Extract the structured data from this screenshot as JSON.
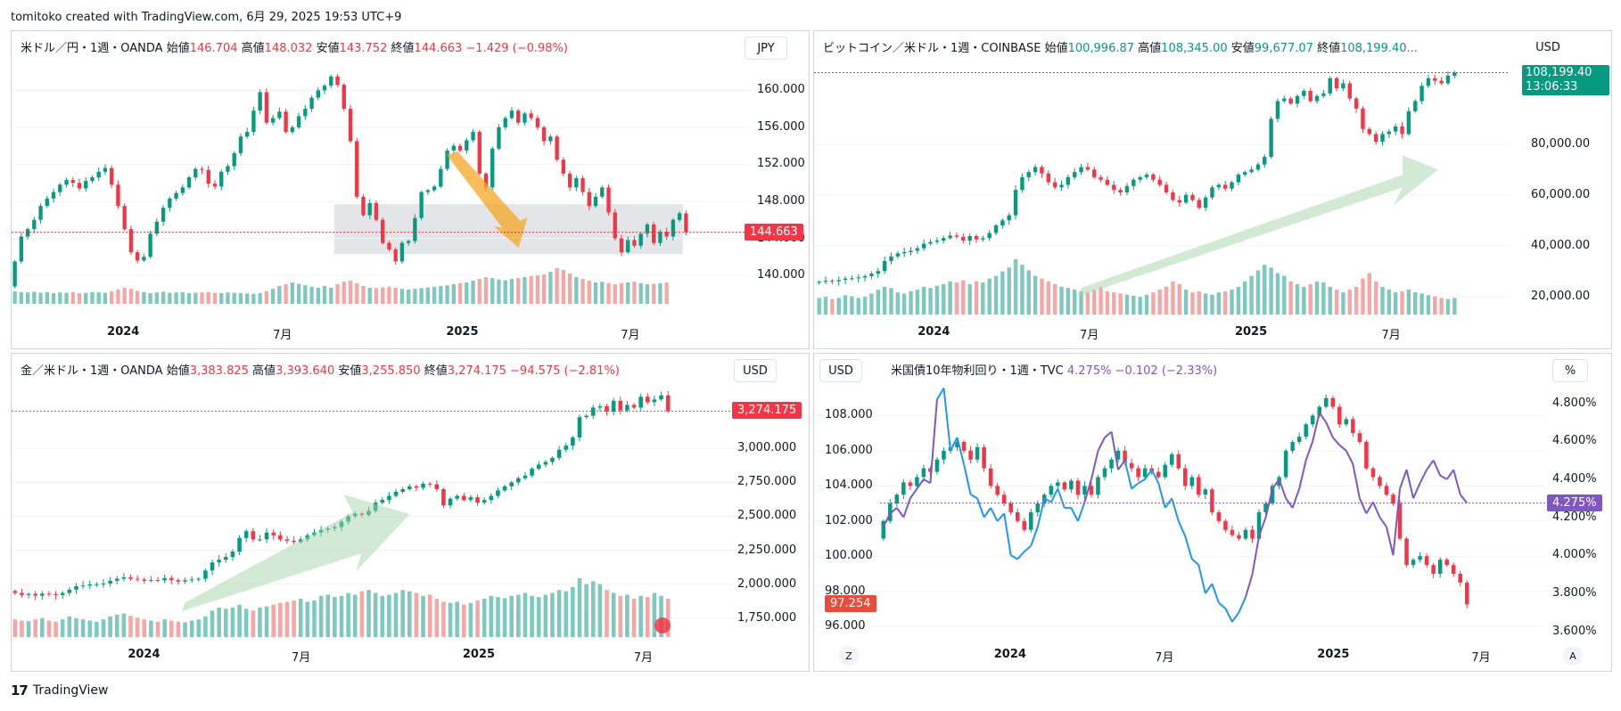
{
  "header": {
    "text": "tomitoko created with TradingView.com, 6月 29, 2025 19:53 UTC+9"
  },
  "footer": {
    "logo": "17",
    "brand": "TradingView"
  },
  "chart_data": [
    {
      "id": "usdjpy",
      "type": "candlestick",
      "legend": {
        "name": "米ドル／円・1週・OANDA",
        "open_label": "始値",
        "open": "146.704",
        "high_label": "高値",
        "high": "148.032",
        "low_label": "安値",
        "low": "143.752",
        "close_label": "終値",
        "close": "144.663",
        "change": "−1.429 (−0.98%)"
      },
      "unit": "JPY",
      "y_ticks": [
        "160.000",
        "156.000",
        "152.000",
        "148.000",
        "144.000",
        "140.000"
      ],
      "y_ticks_values": [
        160,
        156,
        152,
        148,
        144,
        140
      ],
      "ylim": [
        137.5,
        163.5
      ],
      "last_price_tag": "144.663",
      "last_price": 144.663,
      "x_labels": [
        {
          "text": "2024",
          "bold": true,
          "t": 0.146
        },
        {
          "text": "7月",
          "bold": false,
          "t": 0.37
        },
        {
          "text": "2025",
          "bold": true,
          "t": 0.604
        },
        {
          "text": "7月",
          "bold": false,
          "t": 0.84
        }
      ],
      "closes": [
        141.5,
        144.2,
        145.0,
        146.0,
        147.5,
        148.3,
        149.0,
        149.8,
        150.3,
        150.0,
        149.4,
        150.2,
        150.6,
        151.2,
        151.6,
        149.8,
        147.5,
        145.0,
        142.5,
        141.6,
        142.0,
        144.5,
        145.8,
        147.3,
        148.3,
        148.9,
        149.5,
        150.6,
        151.5,
        151.4,
        149.9,
        149.6,
        151.2,
        151.8,
        153.2,
        155.0,
        155.5,
        157.8,
        159.8,
        156.5,
        157.0,
        157.7,
        155.5,
        156.0,
        157.2,
        158.0,
        159.2,
        160.0,
        160.5,
        161.5,
        160.6,
        158.0,
        154.5,
        148.5,
        146.5,
        147.8,
        146.0,
        143.5,
        142.8,
        141.5,
        143.5,
        143.7,
        146.2,
        149.0,
        149.2,
        149.6,
        151.5,
        153.5,
        154.0,
        153.5,
        154.6,
        155.5,
        151.0,
        149.5,
        153.7,
        156.0,
        157.0,
        157.8,
        156.5,
        157.5,
        157.0,
        156.0,
        154.5,
        155.0,
        152.5,
        151.0,
        149.5,
        150.5,
        149.0,
        147.5,
        148.5,
        149.5,
        146.8,
        144.0,
        142.5,
        143.8,
        143.2,
        144.5,
        145.5,
        143.5,
        144.7,
        144.2,
        146.0,
        146.7,
        144.66
      ],
      "volumes": [
        0.35,
        0.33,
        0.32,
        0.34,
        0.31,
        0.33,
        0.3,
        0.32,
        0.31,
        0.33,
        0.3,
        0.31,
        0.33,
        0.32,
        0.31,
        0.35,
        0.4,
        0.45,
        0.42,
        0.36,
        0.33,
        0.3,
        0.32,
        0.34,
        0.31,
        0.32,
        0.33,
        0.3,
        0.31,
        0.32,
        0.33,
        0.31,
        0.3,
        0.32,
        0.31,
        0.3,
        0.29,
        0.28,
        0.3,
        0.35,
        0.42,
        0.5,
        0.55,
        0.6,
        0.56,
        0.52,
        0.48,
        0.45,
        0.5,
        0.45,
        0.55,
        0.62,
        0.65,
        0.58,
        0.5,
        0.45,
        0.44,
        0.46,
        0.48,
        0.45,
        0.42,
        0.4,
        0.42,
        0.44,
        0.46,
        0.48,
        0.5,
        0.52,
        0.55,
        0.58,
        0.6,
        0.65,
        0.7,
        0.75,
        0.72,
        0.68,
        0.66,
        0.7,
        0.72,
        0.75,
        0.78,
        0.8,
        0.82,
        0.9,
        1.0,
        0.95,
        0.85,
        0.75,
        0.7,
        0.65,
        0.6,
        0.62,
        0.58,
        0.55,
        0.58,
        0.6,
        0.62,
        0.58,
        0.55,
        0.56,
        0.58,
        0.6
      ],
      "overlay_rect": {
        "from_candle": 50,
        "to_candle": 104,
        "low": 142.3,
        "high": 147.7
      },
      "overlay_arrow": {
        "color": "#f5a623",
        "from_candle": 68,
        "from_price": 153.0,
        "to_candle": 78,
        "to_price": 143.0
      }
    },
    {
      "id": "btcusd",
      "type": "candlestick",
      "legend": {
        "name": "ビットコイン／米ドル・1週・COINBASE",
        "open_label": "始値",
        "open": "100,996.87",
        "high_label": "高値",
        "high": "108,345.00",
        "low_label": "安値",
        "low": "99,677.07",
        "close_label": "終値",
        "close": "108,199.40..."
      },
      "unit": "USD",
      "y_ticks": [
        "80,000.00",
        "60,000.00",
        "40,000.00",
        "20,000.00"
      ],
      "y_ticks_values": [
        80000,
        60000,
        40000,
        20000
      ],
      "ylim": [
        15000,
        114000
      ],
      "last_price_tag": "108,199.40",
      "countdown": "13:06:33",
      "last_price": 108199.4,
      "x_labels": [
        {
          "text": "2024",
          "bold": true,
          "t": 0.167
        },
        {
          "text": "7月",
          "bold": false,
          "t": 0.4
        },
        {
          "text": "2025",
          "bold": true,
          "t": 0.623
        },
        {
          "text": "7月",
          "bold": false,
          "t": 0.834
        }
      ],
      "closes": [
        25800,
        26200,
        26000,
        26500,
        27000,
        27200,
        27500,
        28000,
        29000,
        30000,
        34000,
        35800,
        37000,
        37500,
        38000,
        39000,
        40800,
        41500,
        42000,
        43000,
        44000,
        43500,
        42000,
        43800,
        42500,
        43000,
        45000,
        48000,
        50000,
        52000,
        62000,
        67000,
        69000,
        71000,
        68500,
        65000,
        63000,
        64000,
        67000,
        69000,
        71000,
        70000,
        67000,
        66000,
        64000,
        62000,
        61000,
        63500,
        66000,
        67000,
        68000,
        66000,
        64000,
        61000,
        58000,
        57000,
        60000,
        58000,
        55000,
        59000,
        63000,
        64000,
        62500,
        65000,
        68000,
        69000,
        70000,
        72000,
        75000,
        90000,
        97000,
        98000,
        96000,
        99000,
        101000,
        97000,
        99000,
        100000,
        106000,
        102000,
        104000,
        98000,
        94000,
        86000,
        84000,
        81000,
        84000,
        85000,
        87000,
        84000,
        93000,
        97000,
        103000,
        106000,
        105000,
        104000,
        107000,
        108199
      ],
      "volumes": [
        0.3,
        0.32,
        0.28,
        0.3,
        0.35,
        0.33,
        0.3,
        0.32,
        0.38,
        0.45,
        0.5,
        0.48,
        0.4,
        0.38,
        0.42,
        0.45,
        0.5,
        0.48,
        0.52,
        0.55,
        0.6,
        0.58,
        0.62,
        0.55,
        0.6,
        0.58,
        0.65,
        0.7,
        0.78,
        0.85,
        1.0,
        0.9,
        0.8,
        0.7,
        0.65,
        0.6,
        0.55,
        0.5,
        0.48,
        0.45,
        0.42,
        0.4,
        0.45,
        0.5,
        0.42,
        0.4,
        0.38,
        0.36,
        0.34,
        0.32,
        0.36,
        0.4,
        0.45,
        0.5,
        0.6,
        0.55,
        0.45,
        0.4,
        0.42,
        0.38,
        0.36,
        0.4,
        0.42,
        0.45,
        0.5,
        0.6,
        0.7,
        0.8,
        0.9,
        0.85,
        0.75,
        0.7,
        0.6,
        0.55,
        0.5,
        0.55,
        0.6,
        0.58,
        0.5,
        0.45,
        0.4,
        0.45,
        0.5,
        0.65,
        0.75,
        0.6,
        0.5,
        0.45,
        0.4,
        0.42,
        0.45,
        0.4,
        0.38,
        0.35,
        0.33,
        0.3,
        0.28,
        0.3
      ],
      "overlay_arrow": {
        "color": "#a5d6a7",
        "from_candle": 40,
        "from_price": 34000,
        "to_candle": 95,
        "to_price": 70000
      }
    },
    {
      "id": "xauusd",
      "type": "candlestick",
      "legend": {
        "name": "金／米ドル・1週・OANDA",
        "open_label": "始値",
        "open": "3,383.825",
        "high_label": "高値",
        "high": "3,393.640",
        "low_label": "安値",
        "low": "3,255.850",
        "close_label": "終値",
        "close": "3,274.175",
        "change": "−94.575 (−2.81%)"
      },
      "unit": "USD",
      "y_ticks": [
        "3,000.000",
        "2,750.000",
        "2,500.000",
        "2,250.000",
        "2,000.000",
        "1,750.000"
      ],
      "y_ticks_values": [
        3000,
        2750,
        2500,
        2250,
        2000,
        1750
      ],
      "ylim": [
        1650,
        3500
      ],
      "last_price_tag": "3,274.175",
      "last_price": 3274.175,
      "x_labels": [
        {
          "text": "2024",
          "bold": true,
          "t": 0.176
        },
        {
          "text": "7月",
          "bold": false,
          "t": 0.4
        },
        {
          "text": "2025",
          "bold": true,
          "t": 0.634
        },
        {
          "text": "7月",
          "bold": false,
          "t": 0.868
        }
      ],
      "closes": [
        1935,
        1920,
        1928,
        1915,
        1930,
        1925,
        1920,
        1935,
        1960,
        1985,
        1990,
        1998,
        2000,
        2005,
        2025,
        2040,
        2050,
        2040,
        2035,
        2025,
        2030,
        2028,
        2045,
        2030,
        2020,
        2030,
        2035,
        2040,
        2100,
        2160,
        2180,
        2200,
        2240,
        2340,
        2390,
        2330,
        2330,
        2380,
        2360,
        2330,
        2320,
        2310,
        2330,
        2360,
        2380,
        2400,
        2410,
        2420,
        2460,
        2500,
        2520,
        2510,
        2540,
        2600,
        2620,
        2650,
        2680,
        2700,
        2720,
        2710,
        2740,
        2735,
        2700,
        2580,
        2630,
        2650,
        2620,
        2640,
        2600,
        2620,
        2650,
        2690,
        2720,
        2750,
        2780,
        2800,
        2850,
        2880,
        2900,
        2930,
        2990,
        3020,
        3080,
        3230,
        3240,
        3300,
        3310,
        3270,
        3350,
        3280,
        3320,
        3300,
        3380,
        3340,
        3360,
        3390,
        3274
      ],
      "volumes": [
        0.3,
        0.28,
        0.27,
        0.3,
        0.32,
        0.28,
        0.26,
        0.3,
        0.35,
        0.32,
        0.3,
        0.28,
        0.26,
        0.3,
        0.35,
        0.38,
        0.4,
        0.36,
        0.33,
        0.3,
        0.28,
        0.26,
        0.3,
        0.28,
        0.26,
        0.25,
        0.28,
        0.3,
        0.35,
        0.45,
        0.5,
        0.48,
        0.5,
        0.55,
        0.48,
        0.45,
        0.5,
        0.52,
        0.55,
        0.58,
        0.6,
        0.62,
        0.65,
        0.6,
        0.62,
        0.7,
        0.72,
        0.68,
        0.7,
        0.75,
        0.72,
        0.78,
        0.8,
        0.75,
        0.7,
        0.72,
        0.75,
        0.8,
        0.78,
        0.75,
        0.7,
        0.72,
        0.65,
        0.6,
        0.58,
        0.6,
        0.55,
        0.58,
        0.62,
        0.65,
        0.7,
        0.68,
        0.66,
        0.7,
        0.72,
        0.75,
        0.7,
        0.68,
        0.72,
        0.75,
        0.8,
        0.78,
        0.85,
        1.0,
        0.9,
        0.95,
        0.9,
        0.8,
        0.75,
        0.7,
        0.72,
        0.65,
        0.7,
        0.68,
        0.75,
        0.7,
        0.65
      ],
      "overlay_arrow": {
        "color": "#a5d6a7",
        "from_candle": 25,
        "from_price": 1800,
        "to_candle": 58,
        "to_price": 2620
      }
    },
    {
      "id": "us10y",
      "type": "candlestick_with_line",
      "legend_left_unit": "USD",
      "legend": {
        "name": "米国債10年物利回り・1週・TVC",
        "value": "4.275%",
        "change": "−0.102 (−2.33%)"
      },
      "unit": "%",
      "left_y_ticks": [
        "108.000",
        "106.000",
        "104.000",
        "102.000",
        "100.000",
        "98.000",
        "96.000"
      ],
      "left_y_ticks_values": [
        108,
        106,
        104,
        102,
        100,
        98,
        96
      ],
      "left_ylim": [
        95.4,
        110.0
      ],
      "right_y_ticks": [
        "4.800%",
        "4.600%",
        "4.400%",
        "4.200%",
        "4.000%",
        "3.800%",
        "3.600%"
      ],
      "right_y_ticks_values": [
        4.8,
        4.6,
        4.4,
        4.2,
        4.0,
        3.8,
        3.6
      ],
      "right_ylim": [
        3.57,
        4.92
      ],
      "left_tag": "97.254",
      "right_tag": "4.275%",
      "last_yield": 4.275,
      "buttons": {
        "left": "Z",
        "right": "A"
      },
      "x_labels": [
        {
          "text": "2024",
          "bold": true,
          "t": 0.19
        },
        {
          "text": "7月",
          "bold": false,
          "t": 0.432
        },
        {
          "text": "2025",
          "bold": true,
          "t": 0.676
        },
        {
          "text": "7月",
          "bold": false,
          "t": 0.908
        }
      ],
      "closes": [
        102.0,
        103.0,
        103.5,
        104.2,
        104.0,
        104.5,
        105.0,
        104.8,
        105.5,
        106.0,
        106.2,
        106.5,
        106.0,
        105.5,
        106.2,
        105.0,
        104.0,
        103.5,
        103.0,
        102.5,
        102.0,
        101.5,
        102.5,
        103.0,
        103.5,
        104.0,
        104.2,
        103.8,
        104.3,
        103.5,
        104.0,
        103.5,
        104.5,
        105.0,
        105.5,
        106.0,
        105.3,
        105.0,
        104.5,
        105.0,
        104.8,
        104.5,
        105.2,
        105.8,
        105.0,
        104.0,
        104.5,
        103.5,
        103.8,
        102.5,
        102.0,
        101.5,
        101.2,
        101.0,
        101.5,
        101.0,
        102.5,
        103.0,
        104.0,
        104.5,
        106.0,
        106.5,
        106.8,
        107.5,
        108.0,
        108.5,
        109.0,
        108.5,
        107.5,
        107.8,
        107.0,
        106.5,
        105.0,
        104.5,
        104.0,
        103.5,
        103.0,
        101.0,
        99.5,
        99.8,
        100.0,
        99.5,
        99.0,
        99.8,
        99.5,
        99.0,
        98.5,
        97.254
      ],
      "yield_line": [
        4.15,
        4.22,
        4.25,
        4.2,
        4.3,
        4.35,
        4.4,
        4.38,
        4.82,
        4.88,
        4.55,
        4.62,
        4.48,
        4.32,
        4.3,
        4.2,
        4.25,
        4.18,
        4.22,
        4.0,
        3.98,
        4.02,
        4.05,
        4.15,
        4.3,
        4.28,
        4.35,
        4.25,
        4.25,
        4.18,
        4.28,
        4.4,
        4.55,
        4.62,
        4.65,
        4.45,
        4.5,
        4.35,
        4.38,
        4.4,
        4.45,
        4.38,
        4.25,
        4.3,
        4.18,
        4.1,
        3.98,
        3.95,
        3.8,
        3.85,
        3.75,
        3.72,
        3.65,
        3.7,
        3.78,
        3.9,
        4.1,
        4.2,
        4.35,
        4.4,
        4.3,
        4.25,
        4.35,
        4.5,
        4.6,
        4.75,
        4.7,
        4.62,
        4.58,
        4.55,
        4.48,
        4.3,
        4.22,
        4.28,
        4.2,
        4.15,
        4.0,
        4.35,
        4.45,
        4.3,
        4.38,
        4.45,
        4.5,
        4.42,
        4.4,
        4.45,
        4.32,
        4.275
      ],
      "line_colors": [
        "#7e57c2",
        "#2196f3"
      ],
      "last_yield_line_color": "#7e57c2"
    }
  ],
  "colors": {
    "up": "#089981",
    "down": "#f23645",
    "vol_up": "#7fc8bd",
    "vol_dn": "#f7a6a6",
    "grid": "#f0f3fa"
  }
}
